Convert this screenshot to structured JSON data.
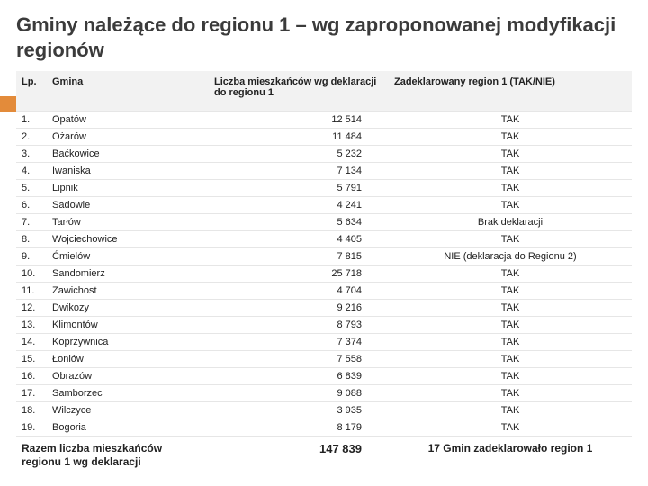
{
  "title": "Gminy należące do regionu 1 – wg zaproponowanej  modyfikacji regionów",
  "headers": {
    "lp": "Lp.",
    "gmina": "Gmina",
    "liczba": "Liczba mieszkańców  wg deklaracji do regionu 1",
    "dekl": "Zadeklarowany region  1 (TAK/NIE)"
  },
  "rows": [
    {
      "lp": "1.",
      "gmina": "Opatów",
      "liczba": "12 514",
      "dekl": "TAK"
    },
    {
      "lp": "2.",
      "gmina": "Ożarów",
      "liczba": "11 484",
      "dekl": "TAK"
    },
    {
      "lp": "3.",
      "gmina": "Baćkowice",
      "liczba": "5 232",
      "dekl": "TAK"
    },
    {
      "lp": "4.",
      "gmina": "Iwaniska",
      "liczba": "7 134",
      "dekl": "TAK"
    },
    {
      "lp": "5.",
      "gmina": "Lipnik",
      "liczba": "5 791",
      "dekl": "TAK"
    },
    {
      "lp": "6.",
      "gmina": "Sadowie",
      "liczba": "4 241",
      "dekl": "TAK"
    },
    {
      "lp": "7.",
      "gmina": "Tarłów",
      "liczba": "5 634",
      "dekl": "Brak deklaracji"
    },
    {
      "lp": "8.",
      "gmina": "Wojciechowice",
      "liczba": "4 405",
      "dekl": "TAK"
    },
    {
      "lp": "9.",
      "gmina": "Ćmielów",
      "liczba": "7 815",
      "dekl": "NIE (deklaracja do Regionu 2)"
    },
    {
      "lp": "10.",
      "gmina": "Sandomierz",
      "liczba": "25 718",
      "dekl": "TAK"
    },
    {
      "lp": "11.",
      "gmina": "Zawichost",
      "liczba": "4 704",
      "dekl": "TAK"
    },
    {
      "lp": "12.",
      "gmina": "Dwikozy",
      "liczba": "9 216",
      "dekl": "TAK"
    },
    {
      "lp": "13.",
      "gmina": "Klimontów",
      "liczba": "8 793",
      "dekl": "TAK"
    },
    {
      "lp": "14.",
      "gmina": "Koprzywnica",
      "liczba": "7 374",
      "dekl": "TAK"
    },
    {
      "lp": "15.",
      "gmina": "Łoniów",
      "liczba": "7 558",
      "dekl": "TAK"
    },
    {
      "lp": "16.",
      "gmina": "Obrazów",
      "liczba": "6 839",
      "dekl": "TAK"
    },
    {
      "lp": "17.",
      "gmina": "Samborzec",
      "liczba": "9 088",
      "dekl": "TAK"
    },
    {
      "lp": "18.",
      "gmina": "Wilczyce",
      "liczba": "3 935",
      "dekl": "TAK"
    },
    {
      "lp": "19.",
      "gmina": "Bogoria",
      "liczba": "8 179",
      "dekl": "TAK"
    }
  ],
  "groupBreaks": [
    2,
    6,
    9,
    10,
    11,
    12,
    14,
    16,
    19
  ],
  "footer": {
    "label": "Razem liczba mieszkańców regionu 1 wg deklaracji",
    "total": "147 839",
    "summary": "17 Gmin zadeklarowało region 1"
  },
  "colors": {
    "accent": "#e38b3a",
    "header_bg": "#f2f2f2",
    "border": "#e6e6e6",
    "text": "#222222",
    "title": "#3b3b3b"
  }
}
